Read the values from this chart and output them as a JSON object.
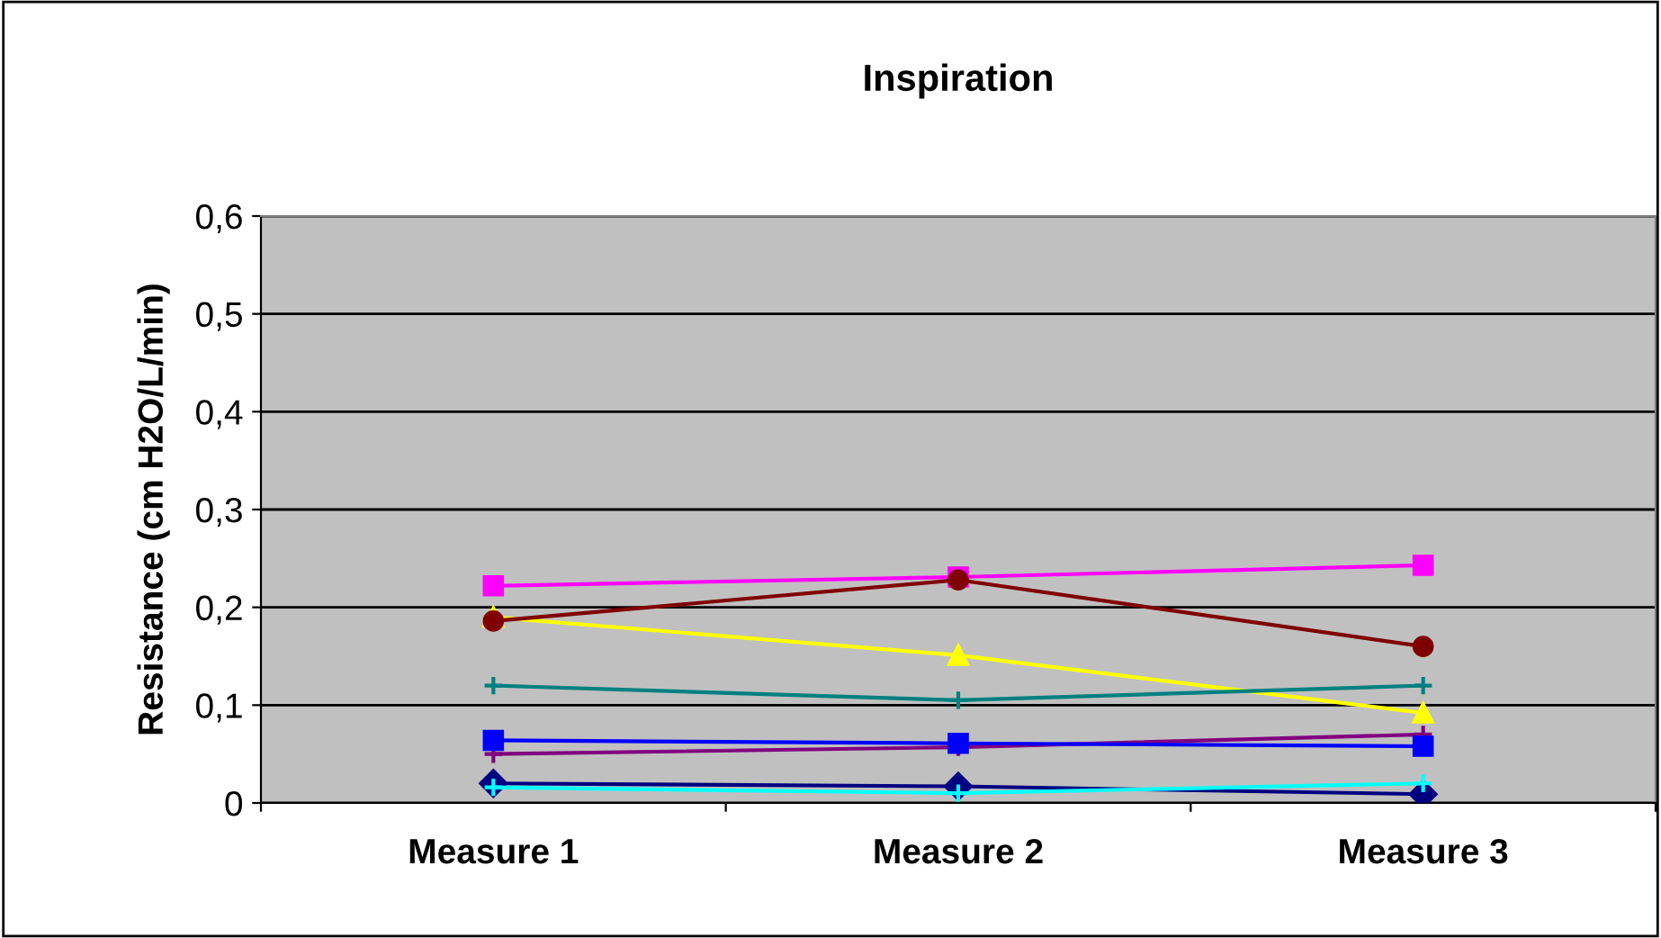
{
  "chart_data": {
    "type": "line",
    "title": "Inspiration",
    "ylabel": "Resistance (cm H2O/L/min)",
    "categories": [
      "Measure 1",
      "Measure 2",
      "Measure 3"
    ],
    "series": [
      {
        "color": "#000080",
        "marker": "diamond",
        "values": [
          0.02,
          0.017,
          0.009
        ]
      },
      {
        "color": "#ff00ff",
        "marker": "square",
        "values": [
          0.222,
          0.231,
          0.243
        ]
      },
      {
        "color": "#ffff00",
        "marker": "triangle",
        "values": [
          0.19,
          0.151,
          0.092
        ]
      },
      {
        "color": "#00ffff",
        "marker": "cross",
        "values": [
          0.016,
          0.01,
          0.02
        ]
      },
      {
        "color": "#800080",
        "marker": "cross",
        "values": [
          0.05,
          0.057,
          0.07
        ]
      },
      {
        "color": "#800000",
        "marker": "circle",
        "values": [
          0.186,
          0.228,
          0.16
        ]
      },
      {
        "color": "#008080",
        "marker": "cross",
        "values": [
          0.12,
          0.105,
          0.12
        ]
      },
      {
        "color": "#0000ff",
        "marker": "square",
        "values": [
          0.064,
          0.061,
          0.058
        ]
      }
    ],
    "ylim": [
      0,
      0.6
    ],
    "yticks": [
      {
        "value": 0,
        "label": "0"
      },
      {
        "value": 0.1,
        "label": "0,1"
      },
      {
        "value": 0.2,
        "label": "0,2"
      },
      {
        "value": 0.3,
        "label": "0,3"
      },
      {
        "value": 0.4,
        "label": "0,4"
      },
      {
        "value": 0.5,
        "label": "0,5"
      },
      {
        "value": 0.6,
        "label": "0,6"
      }
    ],
    "grid": "y",
    "legend": false
  }
}
